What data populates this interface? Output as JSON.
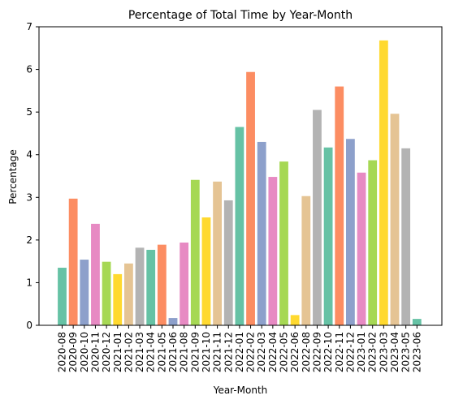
{
  "chart_data": {
    "type": "bar",
    "title": "Percentage of Total Time by Year-Month",
    "xlabel": "Year-Month",
    "ylabel": "Percentage",
    "ylim": [
      0,
      7
    ],
    "yticks": [
      0,
      1,
      2,
      3,
      4,
      5,
      6,
      7
    ],
    "grid": false,
    "categories": [
      "2020-08",
      "2020-09",
      "2020-10",
      "2020-11",
      "2020-12",
      "2021-01",
      "2021-02",
      "2021-03",
      "2021-04",
      "2021-05",
      "2021-06",
      "2021-08",
      "2021-09",
      "2021-10",
      "2021-11",
      "2021-12",
      "2022-01",
      "2022-02",
      "2022-03",
      "2022-04",
      "2022-05",
      "2022-06",
      "2022-08",
      "2022-09",
      "2022-10",
      "2022-11",
      "2022-12",
      "2023-01",
      "2023-02",
      "2023-03",
      "2023-04",
      "2023-05",
      "2023-06"
    ],
    "values": [
      1.35,
      2.97,
      1.54,
      2.38,
      1.49,
      1.2,
      1.45,
      1.82,
      1.77,
      1.89,
      0.17,
      1.94,
      3.41,
      2.53,
      3.37,
      2.93,
      4.65,
      5.94,
      4.3,
      3.48,
      3.84,
      0.24,
      3.03,
      5.05,
      4.17,
      5.6,
      4.37,
      3.58,
      3.87,
      6.68,
      4.96,
      4.15,
      0.15
    ],
    "colors": [
      "#66c2a5",
      "#fc8d62",
      "#8da0cb",
      "#e78ac3",
      "#a6d854",
      "#ffd92f",
      "#e5c494",
      "#b3b3b3"
    ]
  }
}
